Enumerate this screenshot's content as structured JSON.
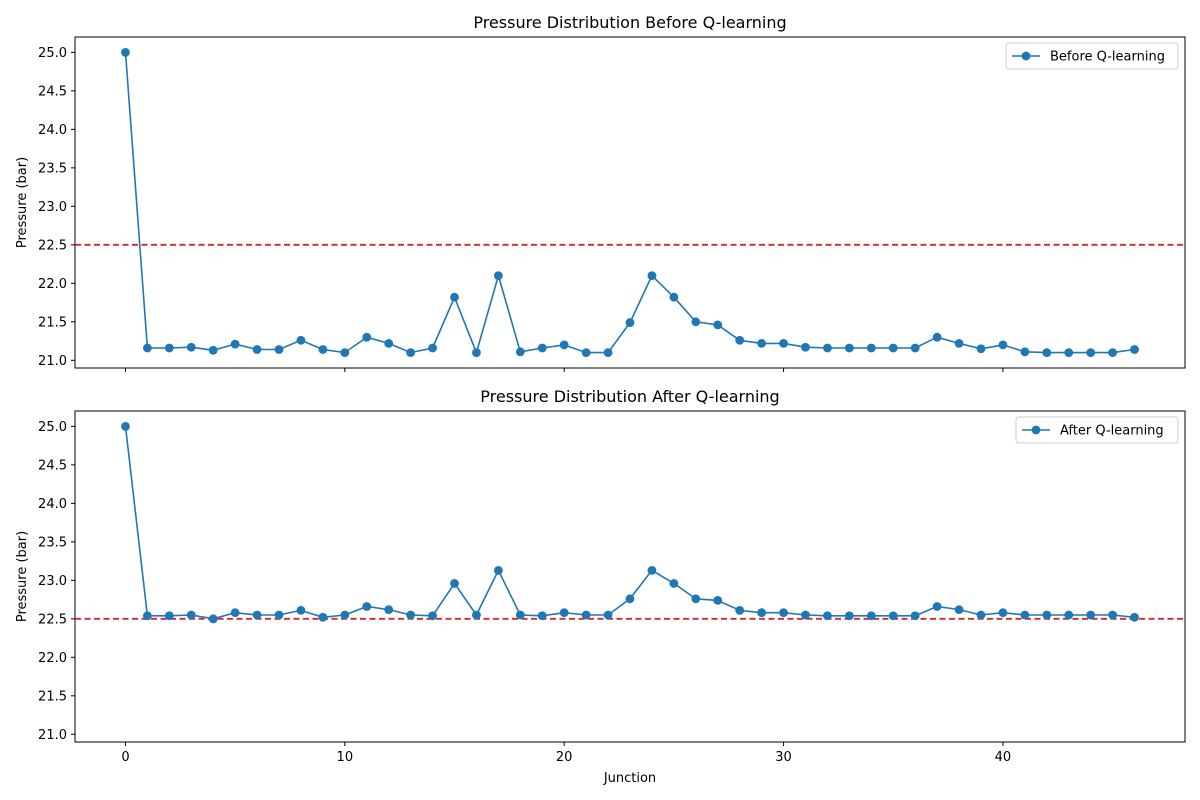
{
  "colors": {
    "series": "#1f77b4",
    "threshold": "#d62728",
    "legend_border": "#cccccc"
  },
  "chart_data": [
    {
      "type": "line",
      "title": "Pressure Distribution Before Q-learning",
      "xlabel": "",
      "ylabel": "Pressure (bar)",
      "xlim": [
        -2.3,
        48.3
      ],
      "ylim": [
        20.9,
        25.2
      ],
      "xticks": [
        0,
        10,
        20,
        30,
        40
      ],
      "xtick_labels_shown": false,
      "yticks": [
        "21.0",
        "21.5",
        "22.0",
        "22.5",
        "23.0",
        "23.5",
        "24.0",
        "24.5",
        "25.0"
      ],
      "grid": false,
      "legend_position": "top-right",
      "threshold": 22.5,
      "series": [
        {
          "name": "Before Q-learning",
          "marker": "circle",
          "x": [
            0,
            1,
            2,
            3,
            4,
            5,
            6,
            7,
            8,
            9,
            10,
            11,
            12,
            13,
            14,
            15,
            16,
            17,
            18,
            19,
            20,
            21,
            22,
            23,
            24,
            25,
            26,
            27,
            28,
            29,
            30,
            31,
            32,
            33,
            34,
            35,
            36,
            37,
            38,
            39,
            40,
            41,
            42,
            43,
            44,
            45,
            46
          ],
          "y": [
            25.0,
            21.16,
            21.16,
            21.17,
            21.13,
            21.21,
            21.14,
            21.14,
            21.26,
            21.14,
            21.1,
            21.3,
            21.22,
            21.1,
            21.16,
            21.82,
            21.1,
            22.1,
            21.11,
            21.16,
            21.2,
            21.1,
            21.1,
            21.49,
            22.1,
            21.82,
            21.5,
            21.46,
            21.26,
            21.22,
            21.22,
            21.17,
            21.16,
            21.16,
            21.16,
            21.16,
            21.16,
            21.3,
            21.22,
            21.15,
            21.2,
            21.11,
            21.1,
            21.1,
            21.1,
            21.1,
            21.14
          ]
        }
      ]
    },
    {
      "type": "line",
      "title": "Pressure Distribution After Q-learning",
      "xlabel": "Junction",
      "ylabel": "Pressure (bar)",
      "xlim": [
        -2.3,
        48.3
      ],
      "ylim": [
        20.9,
        25.2
      ],
      "xticks": [
        0,
        10,
        20,
        30,
        40
      ],
      "xtick_labels": [
        "0",
        "10",
        "20",
        "30",
        "40"
      ],
      "yticks": [
        "21.0",
        "21.5",
        "22.0",
        "22.5",
        "23.0",
        "23.5",
        "24.0",
        "24.5",
        "25.0"
      ],
      "grid": false,
      "legend_position": "top-right",
      "threshold": 22.5,
      "series": [
        {
          "name": "After Q-learning",
          "marker": "circle",
          "x": [
            0,
            1,
            2,
            3,
            4,
            5,
            6,
            7,
            8,
            9,
            10,
            11,
            12,
            13,
            14,
            15,
            16,
            17,
            18,
            19,
            20,
            21,
            22,
            23,
            24,
            25,
            26,
            27,
            28,
            29,
            30,
            31,
            32,
            33,
            34,
            35,
            36,
            37,
            38,
            39,
            40,
            41,
            42,
            43,
            44,
            45,
            46
          ],
          "y": [
            25.0,
            22.54,
            22.54,
            22.55,
            22.5,
            22.58,
            22.55,
            22.55,
            22.61,
            22.52,
            22.55,
            22.66,
            22.62,
            22.55,
            22.54,
            22.96,
            22.55,
            23.13,
            22.55,
            22.54,
            22.58,
            22.55,
            22.55,
            22.76,
            23.13,
            22.96,
            22.76,
            22.74,
            22.61,
            22.58,
            22.58,
            22.55,
            22.54,
            22.54,
            22.54,
            22.54,
            22.54,
            22.66,
            22.62,
            22.55,
            22.58,
            22.55,
            22.55,
            22.55,
            22.55,
            22.55,
            22.52
          ]
        }
      ]
    }
  ]
}
